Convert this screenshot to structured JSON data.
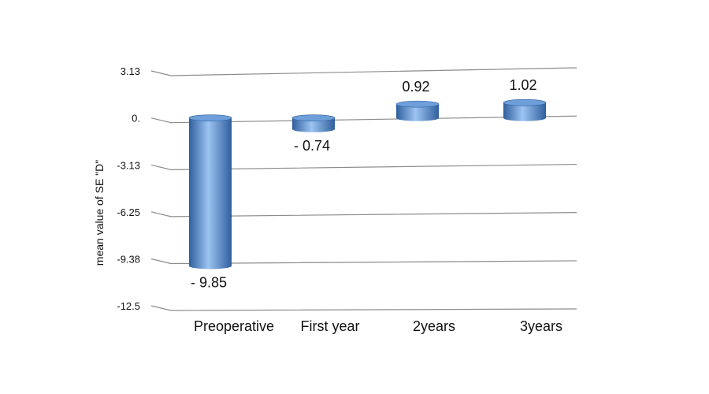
{
  "chart_data": {
    "type": "bar",
    "ylabel": "mean value of SE \"D\"",
    "categories": [
      "Preoperative",
      "First year",
      "2years",
      "3years"
    ],
    "values": [
      -9.85,
      -0.74,
      0.92,
      1.02
    ],
    "value_labels": [
      "- 9.85",
      "- 0.74",
      "0.92",
      "1.02"
    ],
    "yticks": [
      3.13,
      0,
      -3.13,
      -6.25,
      -9.38,
      -12.5
    ],
    "ytick_labels": [
      "3.13",
      "0.",
      "-3.13",
      "-6.25",
      "-9.38",
      "-12.5"
    ],
    "ylim": [
      -12.5,
      3.13
    ],
    "grid": true,
    "colors": {
      "bar_dark": "#2f5f9e",
      "bar_mid": "#4f86cf",
      "bar_light": "#9cc4f2",
      "bar_top": "#6f9fda",
      "grid": "#8c8c8c"
    }
  }
}
